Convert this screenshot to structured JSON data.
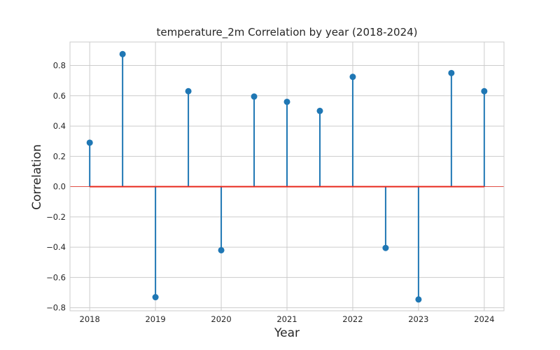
{
  "chart_data": {
    "type": "stem",
    "title": "temperature_2m Correlation by year (2018-2024)",
    "xlabel": "Year",
    "ylabel": "Correlation",
    "xlim": [
      2017.7,
      2024.3
    ],
    "ylim": [
      -0.82,
      0.955
    ],
    "xticks": [
      2018,
      2019,
      2020,
      2021,
      2022,
      2023,
      2024
    ],
    "xtick_labels": [
      "2018",
      "2019",
      "2020",
      "2021",
      "2022",
      "2023",
      "2024"
    ],
    "yticks": [
      -0.8,
      -0.6,
      -0.4,
      -0.2,
      0.0,
      0.2,
      0.4,
      0.6,
      0.8
    ],
    "ytick_labels": [
      "−0.8",
      "−0.6",
      "−0.4",
      "−0.2",
      "0.0",
      "0.2",
      "0.4",
      "0.6",
      "0.8"
    ],
    "x": [
      2018,
      2018.5,
      2019,
      2019.5,
      2020,
      2020.5,
      2021,
      2021.5,
      2022,
      2022.5,
      2023,
      2023.5,
      2024
    ],
    "y": [
      0.29,
      0.875,
      -0.73,
      0.63,
      -0.42,
      0.595,
      0.56,
      0.5,
      0.725,
      -0.405,
      -0.745,
      0.75,
      0.63
    ],
    "baseline": 0.0,
    "grid": true,
    "colors": {
      "stem": "#1f77b4",
      "marker": "#1f77b4",
      "baseline": "#e8291c",
      "grid": "#cccccc"
    }
  }
}
